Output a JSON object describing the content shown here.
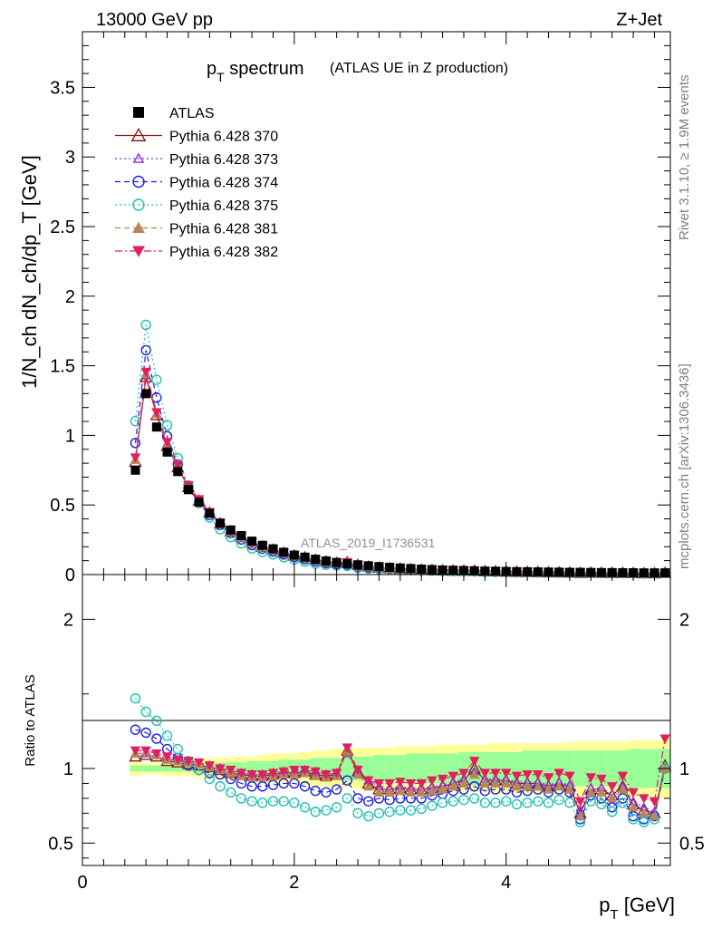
{
  "header": {
    "left": "13000 GeV pp",
    "right": "Z+Jet"
  },
  "side_labels": {
    "rivet": "Rivet 3.1.10, ≥ 1.9M events",
    "mcplots": "mcplots.cern.ch [arXiv:1306.3436]"
  },
  "watermark": "ATLAS_2019_I1736531",
  "chart_data": {
    "type": "scatter",
    "title_main": "p",
    "title_sub": "T",
    "title_rest": " spectrum",
    "title_paren": "(ATLAS UE in Z production)",
    "xlabel_main": "p",
    "xlabel_sub": "T",
    "xlabel_unit": " [GeV]",
    "ylabel": "1/N_ch dN_ch/dp_T [GeV]",
    "ratio_ylabel": "Ratio to ATLAS",
    "xlim": [
      0,
      5.55
    ],
    "ylim": [
      0,
      3.9
    ],
    "ratio_ylim": [
      0.35,
      2.3
    ],
    "x_ticks": [
      0,
      2,
      4
    ],
    "x_tick_labels": [
      "0",
      "2",
      "4"
    ],
    "y_ticks": [
      0,
      0.5,
      1,
      1.5,
      2,
      2.5,
      3,
      3.5
    ],
    "y_tick_labels": [
      "0",
      "0.5",
      "1",
      "1.5",
      "2",
      "2.5",
      "3",
      "3.5"
    ],
    "ratio_ticks": [
      0.5,
      1,
      2
    ],
    "ratio_tick_labels_left": [
      "0.5",
      "1",
      "2"
    ],
    "ratio_tick_labels_right": [
      "0.5",
      "1",
      "2"
    ],
    "x": [
      0.5,
      0.6,
      0.7,
      0.8,
      0.9,
      1.0,
      1.1,
      1.2,
      1.3,
      1.4,
      1.5,
      1.6,
      1.7,
      1.8,
      1.9,
      2.0,
      2.1,
      2.2,
      2.3,
      2.4,
      2.5,
      2.6,
      2.7,
      2.8,
      2.9,
      3.0,
      3.1,
      3.2,
      3.3,
      3.4,
      3.5,
      3.6,
      3.7,
      3.8,
      3.9,
      4.0,
      4.1,
      4.2,
      4.3,
      4.4,
      4.5,
      4.6,
      4.7,
      4.8,
      4.9,
      5.0,
      5.1,
      5.2,
      5.3,
      5.4,
      5.5
    ],
    "data_values": [
      0.75,
      1.3,
      1.06,
      0.88,
      0.74,
      0.61,
      0.52,
      0.44,
      0.37,
      0.32,
      0.28,
      0.24,
      0.21,
      0.185,
      0.16,
      0.14,
      0.125,
      0.11,
      0.098,
      0.087,
      0.078,
      0.07,
      0.063,
      0.057,
      0.052,
      0.047,
      0.043,
      0.039,
      0.036,
      0.033,
      0.031,
      0.029,
      0.027,
      0.025,
      0.024,
      0.022,
      0.021,
      0.02,
      0.019,
      0.018,
      0.017,
      0.016,
      0.016,
      0.015,
      0.014,
      0.014,
      0.013,
      0.013,
      0.012,
      0.012,
      0.012
    ],
    "band_low": [
      0.95,
      0.96,
      0.96,
      0.95,
      0.95,
      0.95,
      0.94,
      0.93,
      0.93,
      0.92,
      0.92,
      0.92,
      0.91,
      0.9,
      0.9,
      0.9,
      0.89,
      0.88,
      0.88,
      0.87,
      0.87,
      0.86,
      0.86,
      0.86,
      0.86,
      0.85,
      0.85,
      0.85,
      0.85,
      0.84,
      0.84,
      0.84,
      0.84,
      0.84,
      0.83,
      0.83,
      0.83,
      0.83,
      0.83,
      0.83,
      0.83,
      0.82,
      0.82,
      0.82,
      0.82,
      0.82,
      0.82,
      0.81,
      0.81,
      0.81,
      0.8
    ],
    "band_high": [
      1.05,
      1.04,
      1.04,
      1.05,
      1.05,
      1.05,
      1.06,
      1.07,
      1.07,
      1.08,
      1.08,
      1.08,
      1.09,
      1.1,
      1.1,
      1.1,
      1.11,
      1.12,
      1.12,
      1.13,
      1.13,
      1.14,
      1.14,
      1.14,
      1.14,
      1.15,
      1.15,
      1.15,
      1.15,
      1.16,
      1.16,
      1.16,
      1.16,
      1.16,
      1.17,
      1.17,
      1.17,
      1.17,
      1.17,
      1.17,
      1.17,
      1.18,
      1.18,
      1.18,
      1.18,
      1.18,
      1.18,
      1.19,
      1.19,
      1.19,
      1.2
    ],
    "band_stat_low": [
      0.98,
      0.98,
      0.98,
      0.98,
      0.98,
      0.98,
      0.97,
      0.97,
      0.96,
      0.96,
      0.96,
      0.95,
      0.95,
      0.95,
      0.94,
      0.94,
      0.94,
      0.93,
      0.93,
      0.93,
      0.92,
      0.92,
      0.92,
      0.91,
      0.91,
      0.91,
      0.9,
      0.9,
      0.9,
      0.9,
      0.9,
      0.89,
      0.89,
      0.89,
      0.89,
      0.89,
      0.89,
      0.88,
      0.88,
      0.88,
      0.88,
      0.88,
      0.88,
      0.88,
      0.88,
      0.88,
      0.88,
      0.87,
      0.87,
      0.87,
      0.87
    ],
    "band_stat_high": [
      1.02,
      1.02,
      1.02,
      1.02,
      1.02,
      1.02,
      1.03,
      1.03,
      1.04,
      1.04,
      1.04,
      1.05,
      1.05,
      1.05,
      1.06,
      1.06,
      1.06,
      1.07,
      1.07,
      1.07,
      1.08,
      1.08,
      1.08,
      1.09,
      1.09,
      1.09,
      1.1,
      1.1,
      1.1,
      1.1,
      1.1,
      1.11,
      1.11,
      1.11,
      1.11,
      1.11,
      1.11,
      1.12,
      1.12,
      1.12,
      1.12,
      1.12,
      1.12,
      1.12,
      1.12,
      1.12,
      1.12,
      1.13,
      1.13,
      1.13,
      1.13
    ],
    "legend": [
      {
        "name": "ATLAS",
        "color": "#000000",
        "marker": "square-filled",
        "dash": "none"
      },
      {
        "name": "Pythia 6.428 370",
        "color": "#8b1a1a",
        "marker": "triangle-open",
        "dash": "solid"
      },
      {
        "name": "Pythia 6.428 373",
        "color": "#8a2be2",
        "marker": "triangle-open-small",
        "dash": "dotted"
      },
      {
        "name": "Pythia 6.428 374",
        "color": "#1e1ee6",
        "marker": "circle-open",
        "dash": "dashed"
      },
      {
        "name": "Pythia 6.428 375",
        "color": "#20c0b0",
        "marker": "circle-open",
        "dash": "dotted"
      },
      {
        "name": "Pythia 6.428 381",
        "color": "#b8865a",
        "marker": "triangle-filled",
        "dash": "dashed"
      },
      {
        "name": "Pythia 6.428 382",
        "color": "#e0205a",
        "marker": "triangledown-filled",
        "dash": "dashdot"
      }
    ],
    "series": [
      {
        "name": "Pythia 6.428 370",
        "ratio": [
          1.08,
          1.09,
          1.08,
          1.05,
          1.04,
          1.03,
          1.02,
          1.01,
          0.99,
          0.97,
          0.96,
          0.95,
          0.95,
          0.96,
          0.97,
          0.97,
          0.98,
          0.96,
          0.95,
          0.96,
          1.12,
          0.98,
          0.9,
          0.86,
          0.86,
          0.87,
          0.86,
          0.86,
          0.87,
          0.88,
          0.9,
          0.92,
          1.0,
          0.92,
          0.92,
          0.92,
          0.9,
          0.9,
          0.9,
          0.88,
          0.9,
          0.88,
          0.7,
          0.86,
          0.86,
          0.82,
          0.88,
          0.76,
          0.72,
          0.7,
          1.02
        ]
      },
      {
        "name": "Pythia 6.428 373",
        "ratio": [
          1.1,
          1.1,
          1.09,
          1.07,
          1.05,
          1.04,
          1.03,
          1.02,
          1.0,
          0.98,
          0.97,
          0.96,
          0.96,
          0.97,
          0.98,
          0.98,
          0.99,
          0.98,
          0.96,
          0.97,
          1.1,
          0.98,
          0.92,
          0.88,
          0.87,
          0.88,
          0.87,
          0.87,
          0.88,
          0.89,
          0.91,
          0.93,
          0.98,
          0.93,
          0.93,
          0.93,
          0.91,
          0.91,
          0.91,
          0.89,
          0.91,
          0.89,
          0.72,
          0.87,
          0.87,
          0.83,
          0.88,
          0.78,
          0.74,
          0.71,
          1.0
        ]
      },
      {
        "name": "Pythia 6.428 374",
        "ratio": [
          1.26,
          1.24,
          1.2,
          1.13,
          1.07,
          1.02,
          0.99,
          0.97,
          0.96,
          0.93,
          0.9,
          0.88,
          0.88,
          0.89,
          0.9,
          0.9,
          0.88,
          0.85,
          0.84,
          0.86,
          0.92,
          0.8,
          0.78,
          0.8,
          0.79,
          0.8,
          0.8,
          0.8,
          0.82,
          0.83,
          0.85,
          0.86,
          0.88,
          0.85,
          0.86,
          0.86,
          0.84,
          0.85,
          0.86,
          0.84,
          0.86,
          0.84,
          0.66,
          0.82,
          0.8,
          0.74,
          0.8,
          0.68,
          0.66,
          0.68,
          1.0
        ]
      },
      {
        "name": "Pythia 6.428 375",
        "ratio": [
          1.47,
          1.38,
          1.32,
          1.22,
          1.13,
          1.05,
          0.99,
          0.93,
          0.88,
          0.84,
          0.8,
          0.78,
          0.77,
          0.78,
          0.78,
          0.77,
          0.74,
          0.71,
          0.72,
          0.74,
          0.8,
          0.7,
          0.68,
          0.7,
          0.71,
          0.72,
          0.72,
          0.73,
          0.75,
          0.77,
          0.78,
          0.79,
          0.8,
          0.77,
          0.77,
          0.78,
          0.76,
          0.77,
          0.78,
          0.77,
          0.79,
          0.77,
          0.64,
          0.78,
          0.76,
          0.71,
          0.77,
          0.66,
          0.64,
          0.66,
          1.0
        ]
      },
      {
        "name": "Pythia 6.428 381",
        "ratio": [
          1.1,
          1.11,
          1.09,
          1.06,
          1.05,
          1.04,
          1.03,
          1.01,
          0.99,
          0.97,
          0.95,
          0.94,
          0.94,
          0.95,
          0.96,
          0.96,
          0.97,
          0.95,
          0.94,
          0.95,
          1.12,
          0.96,
          0.88,
          0.84,
          0.84,
          0.85,
          0.84,
          0.84,
          0.85,
          0.86,
          0.88,
          0.9,
          0.96,
          0.9,
          0.9,
          0.9,
          0.88,
          0.88,
          0.88,
          0.86,
          0.88,
          0.86,
          0.68,
          0.84,
          0.84,
          0.8,
          0.86,
          0.74,
          0.7,
          0.68,
          1.0
        ]
      },
      {
        "name": "Pythia 6.428 382",
        "ratio": [
          1.12,
          1.12,
          1.1,
          1.08,
          1.06,
          1.05,
          1.04,
          1.02,
          1.0,
          0.99,
          0.97,
          0.96,
          0.96,
          0.97,
          0.98,
          0.99,
          0.99,
          0.98,
          0.96,
          0.97,
          1.14,
          0.99,
          0.92,
          0.9,
          0.9,
          0.91,
          0.9,
          0.9,
          0.92,
          0.93,
          0.95,
          0.97,
          1.05,
          0.97,
          0.97,
          0.97,
          0.95,
          0.96,
          0.96,
          0.94,
          0.97,
          0.95,
          0.78,
          0.94,
          0.93,
          0.88,
          0.95,
          0.84,
          0.8,
          0.78,
          1.2
        ]
      }
    ]
  }
}
